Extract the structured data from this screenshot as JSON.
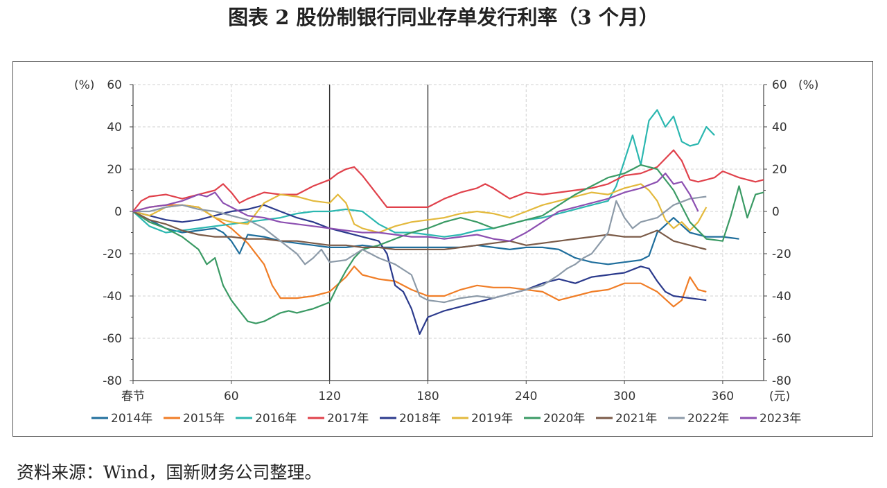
{
  "figure": {
    "title": "图表 2  股份制银行同业存单发行利率（3 个月）",
    "source": "资料来源：Wind，国新财务公司整理。"
  },
  "chart_data": {
    "type": "line",
    "ylabel_left": "(%)",
    "ylabel_right": "(%)",
    "x_unit": "(元)",
    "xlim": [
      0,
      385
    ],
    "ylim": [
      -80,
      60
    ],
    "x_ticks": [
      {
        "value": 0,
        "label": "春节"
      },
      {
        "value": 60,
        "label": "60"
      },
      {
        "value": 120,
        "label": "120"
      },
      {
        "value": 180,
        "label": "180"
      },
      {
        "value": 240,
        "label": "240"
      },
      {
        "value": 300,
        "label": "300"
      },
      {
        "value": 360,
        "label": "360"
      }
    ],
    "y_ticks": [
      60,
      40,
      20,
      0,
      -20,
      -40,
      -60,
      -80
    ],
    "y_tick_labels": [
      "60",
      "40",
      "20",
      "0",
      "-20",
      "-40",
      "-60",
      "-80"
    ],
    "vertical_lines_at": [
      120,
      180
    ],
    "grid": true,
    "legend_position": "bottom",
    "series": [
      {
        "name": "2014年",
        "color": "#1f6e9c",
        "x": [
          0,
          10,
          20,
          30,
          40,
          50,
          55,
          60,
          65,
          70,
          80,
          90,
          100,
          110,
          120,
          130,
          140,
          150,
          160,
          170,
          180,
          190,
          200,
          210,
          220,
          230,
          240,
          250,
          260,
          270,
          280,
          290,
          300,
          310,
          315,
          320,
          330,
          340,
          350,
          360,
          370
        ],
        "y": [
          0,
          -4,
          -8,
          -10,
          -9,
          -8,
          -10,
          -14,
          -20,
          -11,
          -12,
          -14,
          -15,
          -16,
          -17,
          -17,
          -16,
          -17,
          -17,
          -17,
          -17,
          -17,
          -17,
          -16,
          -17,
          -18,
          -17,
          -17,
          -18,
          -22,
          -24,
          -25,
          -24,
          -23,
          -21,
          -10,
          -3,
          -10,
          -12,
          -12,
          -13
        ]
      },
      {
        "name": "2015年",
        "color": "#f07d26",
        "x": [
          0,
          10,
          20,
          30,
          40,
          50,
          60,
          70,
          80,
          85,
          90,
          100,
          110,
          120,
          130,
          135,
          140,
          150,
          160,
          170,
          180,
          190,
          200,
          210,
          220,
          230,
          240,
          250,
          260,
          270,
          280,
          290,
          300,
          310,
          320,
          330,
          335,
          340,
          345,
          350
        ],
        "y": [
          0,
          2,
          3,
          3,
          2,
          -3,
          -8,
          -15,
          -25,
          -35,
          -41,
          -41,
          -40,
          -38,
          -31,
          -26,
          -30,
          -32,
          -33,
          -37,
          -40,
          -40,
          -37,
          -35,
          -36,
          -36,
          -37,
          -38,
          -42,
          -40,
          -38,
          -37,
          -34,
          -34,
          -38,
          -45,
          -42,
          -31,
          -37,
          -38
        ]
      },
      {
        "name": "2016年",
        "color": "#2bb7b0",
        "x": [
          0,
          10,
          20,
          30,
          40,
          50,
          60,
          70,
          80,
          90,
          100,
          110,
          120,
          130,
          140,
          150,
          160,
          170,
          180,
          190,
          200,
          210,
          220,
          230,
          240,
          250,
          260,
          270,
          280,
          290,
          295,
          300,
          305,
          310,
          315,
          320,
          325,
          330,
          335,
          340,
          345,
          350,
          355
        ],
        "y": [
          0,
          -7,
          -10,
          -9,
          -8,
          -7,
          -6,
          -5,
          -4,
          -3,
          -1,
          0,
          0,
          1,
          0,
          -6,
          -10,
          -10,
          -11,
          -12,
          -11,
          -9,
          -8,
          -6,
          -4,
          -3,
          -1,
          1,
          3,
          5,
          12,
          24,
          36,
          22,
          43,
          48,
          40,
          45,
          33,
          31,
          32,
          40,
          36
        ]
      },
      {
        "name": "2017年",
        "color": "#e0414b",
        "x": [
          0,
          5,
          10,
          20,
          30,
          40,
          50,
          55,
          60,
          65,
          70,
          80,
          90,
          100,
          110,
          120,
          125,
          130,
          135,
          140,
          150,
          155,
          160,
          170,
          180,
          190,
          200,
          210,
          215,
          220,
          230,
          240,
          250,
          260,
          270,
          280,
          290,
          300,
          310,
          320,
          330,
          335,
          340,
          345,
          350,
          355,
          360,
          370,
          380,
          385
        ],
        "y": [
          0,
          5,
          7,
          8,
          6,
          8,
          10,
          13,
          9,
          4,
          6,
          9,
          8,
          8,
          12,
          15,
          18,
          20,
          21,
          17,
          7,
          2,
          2,
          2,
          2,
          6,
          9,
          11,
          13,
          11,
          6,
          9,
          8,
          9,
          10,
          11,
          13,
          17,
          18,
          21,
          29,
          24,
          15,
          14,
          15,
          16,
          19,
          16,
          14,
          15
        ]
      },
      {
        "name": "2018年",
        "color": "#2b3a8c",
        "x": [
          0,
          10,
          20,
          30,
          40,
          50,
          60,
          70,
          80,
          90,
          100,
          110,
          120,
          130,
          140,
          150,
          155,
          160,
          165,
          170,
          175,
          180,
          190,
          200,
          210,
          220,
          230,
          240,
          250,
          260,
          270,
          280,
          290,
          300,
          310,
          315,
          320,
          325,
          330,
          340,
          350
        ],
        "y": [
          0,
          -2,
          -4,
          -5,
          -4,
          -2,
          0,
          1,
          3,
          0,
          -3,
          -5,
          -8,
          -10,
          -12,
          -14,
          -20,
          -35,
          -38,
          -46,
          -58,
          -50,
          -47,
          -45,
          -43,
          -41,
          -39,
          -37,
          -34,
          -32,
          -34,
          -31,
          -30,
          -29,
          -26,
          -27,
          -33,
          -38,
          -40,
          -41,
          -42
        ]
      },
      {
        "name": "2019年",
        "color": "#e3b93c",
        "x": [
          0,
          10,
          20,
          30,
          40,
          50,
          60,
          70,
          80,
          90,
          100,
          110,
          120,
          125,
          130,
          135,
          140,
          150,
          160,
          170,
          180,
          190,
          200,
          210,
          220,
          230,
          240,
          250,
          260,
          270,
          280,
          290,
          300,
          310,
          315,
          320,
          325,
          330,
          335,
          340,
          345,
          350
        ],
        "y": [
          0,
          -2,
          2,
          3,
          2,
          -3,
          -5,
          -6,
          4,
          8,
          7,
          5,
          4,
          8,
          4,
          -6,
          -8,
          -10,
          -7,
          -5,
          -4,
          -3,
          -1,
          0,
          -1,
          -3,
          0,
          3,
          5,
          7,
          9,
          8,
          11,
          13,
          10,
          5,
          -4,
          -8,
          -5,
          -9,
          -5,
          2
        ]
      },
      {
        "name": "2020年",
        "color": "#3a9a64",
        "x": [
          0,
          10,
          20,
          30,
          40,
          45,
          50,
          55,
          60,
          65,
          70,
          75,
          80,
          85,
          90,
          95,
          100,
          110,
          120,
          125,
          130,
          135,
          140,
          150,
          160,
          170,
          180,
          190,
          200,
          210,
          220,
          230,
          240,
          250,
          260,
          270,
          280,
          290,
          300,
          310,
          320,
          330,
          340,
          350,
          360,
          365,
          370,
          375,
          380,
          385
        ],
        "y": [
          0,
          -5,
          -8,
          -12,
          -18,
          -25,
          -22,
          -35,
          -42,
          -47,
          -52,
          -53,
          -52,
          -50,
          -48,
          -47,
          -48,
          -46,
          -43,
          -35,
          -28,
          -22,
          -18,
          -16,
          -13,
          -10,
          -8,
          -5,
          -3,
          -5,
          -8,
          -6,
          -4,
          -2,
          3,
          8,
          12,
          16,
          18,
          22,
          20,
          10,
          -5,
          -13,
          -14,
          -2,
          12,
          -3,
          8,
          9
        ]
      },
      {
        "name": "2021年",
        "color": "#7a5a47",
        "x": [
          0,
          10,
          20,
          30,
          40,
          50,
          60,
          70,
          80,
          90,
          100,
          110,
          120,
          130,
          140,
          150,
          160,
          170,
          180,
          190,
          200,
          210,
          220,
          230,
          240,
          250,
          260,
          270,
          280,
          290,
          300,
          310,
          320,
          330,
          340,
          350
        ],
        "y": [
          0,
          -4,
          -6,
          -9,
          -11,
          -12,
          -12,
          -13,
          -13,
          -14,
          -14,
          -15,
          -16,
          -16,
          -17,
          -17,
          -18,
          -18,
          -18,
          -18,
          -17,
          -16,
          -15,
          -14,
          -16,
          -15,
          -14,
          -13,
          -12,
          -11,
          -12,
          -12,
          -9,
          -14,
          -16,
          -18
        ]
      },
      {
        "name": "2022年",
        "color": "#8c9aa8",
        "x": [
          0,
          10,
          20,
          30,
          40,
          50,
          60,
          70,
          80,
          90,
          100,
          105,
          110,
          115,
          120,
          130,
          140,
          150,
          160,
          170,
          175,
          180,
          190,
          200,
          210,
          220,
          230,
          240,
          250,
          260,
          265,
          270,
          275,
          280,
          285,
          290,
          295,
          300,
          305,
          310,
          320,
          330,
          340,
          350
        ],
        "y": [
          0,
          0,
          2,
          3,
          1,
          0,
          -2,
          -4,
          -8,
          -14,
          -20,
          -25,
          -22,
          -18,
          -24,
          -23,
          -18,
          -22,
          -25,
          -30,
          -40,
          -42,
          -43,
          -41,
          -40,
          -41,
          -39,
          -37,
          -35,
          -30,
          -27,
          -25,
          -22,
          -20,
          -15,
          -10,
          5,
          -3,
          -8,
          -5,
          -3,
          3,
          6,
          7
        ]
      },
      {
        "name": "2023年",
        "color": "#8c4fb1",
        "x": [
          0,
          10,
          20,
          30,
          40,
          45,
          50,
          55,
          60,
          70,
          80,
          90,
          100,
          110,
          120,
          130,
          140,
          150,
          160,
          170,
          180,
          190,
          200,
          210,
          220,
          230,
          240,
          250,
          260,
          270,
          280,
          290,
          300,
          310,
          320,
          325,
          330,
          335,
          340,
          345
        ],
        "y": [
          0,
          2,
          3,
          5,
          8,
          7,
          9,
          4,
          2,
          -2,
          -3,
          -5,
          -6,
          -7,
          -8,
          -9,
          -10,
          -10,
          -11,
          -12,
          -12,
          -13,
          -12,
          -11,
          -13,
          -14,
          -10,
          -5,
          0,
          2,
          4,
          6,
          9,
          11,
          14,
          18,
          13,
          14,
          8,
          0
        ]
      }
    ]
  }
}
